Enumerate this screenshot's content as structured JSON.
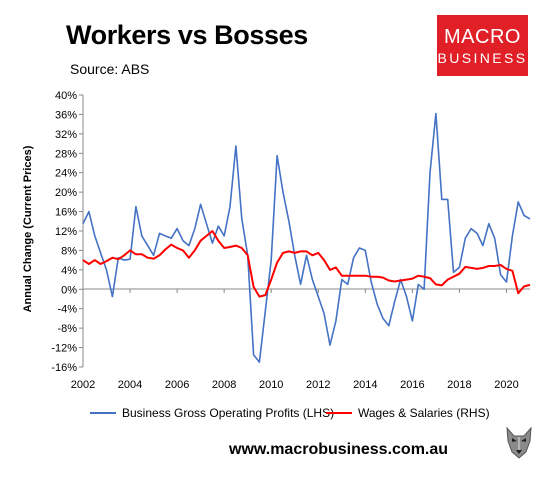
{
  "header": {
    "title": "Workers vs Bosses",
    "subtitle": "Source: ABS"
  },
  "logo": {
    "line1": "MACRO",
    "line2": "BUSINESS",
    "bg_color": "#e01f26"
  },
  "footer": {
    "website": "www.macrobusiness.com.au",
    "wolf_icon": "wolf-head-icon"
  },
  "chart_data": {
    "type": "line",
    "title": "Workers vs Bosses",
    "subtitle": "Source: ABS",
    "ylabel": "Annual Change (Current Prices)",
    "xlabel": "",
    "ylim": [
      -16,
      40
    ],
    "y_ticks": [
      -16,
      -12,
      -8,
      -4,
      0,
      4,
      8,
      12,
      16,
      20,
      24,
      28,
      32,
      36,
      40
    ],
    "y_tick_labels": [
      "-16%",
      "-12%",
      "-8%",
      "-4%",
      "0%",
      "4%",
      "8%",
      "12%",
      "16%",
      "20%",
      "24%",
      "28%",
      "32%",
      "36%",
      "40%"
    ],
    "xlim": [
      2002,
      2021
    ],
    "x_ticks": [
      2002,
      2004,
      2006,
      2008,
      2010,
      2012,
      2014,
      2016,
      2018,
      2020
    ],
    "x_tick_labels": [
      "2002",
      "2004",
      "2006",
      "2008",
      "2010",
      "2012",
      "2014",
      "2016",
      "2018",
      "2020"
    ],
    "grid": false,
    "legend_position": "bottom",
    "series": [
      {
        "name": "Business Gross Operating Profits (LHS)",
        "color": "#4472c4",
        "x": [
          2002.0,
          2002.25,
          2002.5,
          2002.75,
          2003.0,
          2003.25,
          2003.5,
          2003.75,
          2004.0,
          2004.25,
          2004.5,
          2004.75,
          2005.0,
          2005.25,
          2005.5,
          2005.75,
          2006.0,
          2006.25,
          2006.5,
          2006.75,
          2007.0,
          2007.25,
          2007.5,
          2007.75,
          2008.0,
          2008.25,
          2008.5,
          2008.75,
          2009.0,
          2009.25,
          2009.5,
          2009.75,
          2010.0,
          2010.25,
          2010.5,
          2010.75,
          2011.0,
          2011.25,
          2011.5,
          2011.75,
          2012.0,
          2012.25,
          2012.5,
          2012.75,
          2013.0,
          2013.25,
          2013.5,
          2013.75,
          2014.0,
          2014.25,
          2014.5,
          2014.75,
          2015.0,
          2015.25,
          2015.5,
          2015.75,
          2016.0,
          2016.25,
          2016.5,
          2016.75,
          2017.0,
          2017.25,
          2017.5,
          2017.75,
          2018.0,
          2018.25,
          2018.5,
          2018.75,
          2019.0,
          2019.25,
          2019.5,
          2019.75,
          2020.0,
          2020.25,
          2020.5,
          2020.75,
          2021.0
        ],
        "values": [
          13.5,
          16,
          11,
          7.5,
          4,
          -1.5,
          6.5,
          6,
          6.2,
          17,
          11,
          9,
          7,
          11.5,
          11,
          10.5,
          12.5,
          10,
          9,
          12.5,
          17.5,
          13.5,
          9.5,
          13,
          11,
          17,
          29.5,
          14.5,
          7,
          -13.5,
          -15,
          -4.5,
          6,
          27.5,
          20,
          14,
          7,
          1,
          7,
          2,
          -1.5,
          -5,
          -11.5,
          -6.5,
          2,
          1,
          6.5,
          8.5,
          8,
          1.5,
          -3,
          -6,
          -7.5,
          -2.5,
          2,
          -1.5,
          -6.5,
          1,
          0,
          24,
          36.2,
          18.5,
          18.5,
          3.5,
          4.5,
          10.5,
          12.5,
          11.5,
          9,
          13.5,
          10.5,
          3,
          1.5,
          11,
          18,
          15.2,
          14.5
        ]
      },
      {
        "name": "Wages & Salaries (RHS)",
        "color": "#ff0000",
        "x": [
          2002.0,
          2002.25,
          2002.5,
          2002.75,
          2003.0,
          2003.25,
          2003.5,
          2003.75,
          2004.0,
          2004.25,
          2004.5,
          2004.75,
          2005.0,
          2005.25,
          2005.5,
          2005.75,
          2006.0,
          2006.25,
          2006.5,
          2006.75,
          2007.0,
          2007.25,
          2007.5,
          2007.75,
          2008.0,
          2008.25,
          2008.5,
          2008.75,
          2009.0,
          2009.25,
          2009.5,
          2009.75,
          2010.0,
          2010.25,
          2010.5,
          2010.75,
          2011.0,
          2011.25,
          2011.5,
          2011.75,
          2012.0,
          2012.25,
          2012.5,
          2012.75,
          2013.0,
          2013.25,
          2013.5,
          2013.75,
          2014.0,
          2014.25,
          2014.5,
          2014.75,
          2015.0,
          2015.25,
          2015.5,
          2015.75,
          2016.0,
          2016.25,
          2016.5,
          2016.75,
          2017.0,
          2017.25,
          2017.5,
          2017.75,
          2018.0,
          2018.25,
          2018.5,
          2018.75,
          2019.0,
          2019.25,
          2019.5,
          2019.75,
          2020.0,
          2020.25,
          2020.5,
          2020.75,
          2021.0
        ],
        "values": [
          6,
          5.2,
          6,
          5.2,
          5.8,
          6.5,
          6.2,
          7,
          8,
          7.2,
          7.2,
          6.5,
          6.3,
          7,
          8.2,
          9.2,
          8.5,
          8,
          6.5,
          8,
          10,
          11,
          12,
          10,
          8.5,
          8.7,
          9,
          8.5,
          7,
          0.5,
          -1.5,
          -1.2,
          2,
          5.5,
          7.5,
          7.8,
          7.5,
          7.8,
          7.8,
          7,
          7.5,
          6,
          4,
          4.5,
          2.8,
          2.8,
          2.8,
          2.8,
          2.8,
          2.6,
          2.6,
          2.4,
          1.8,
          1.6,
          1.8,
          2,
          2.2,
          2.8,
          2.6,
          2.3,
          1,
          0.8,
          2,
          2.6,
          3.2,
          4.6,
          4.4,
          4.2,
          4.4,
          4.8,
          4.8,
          5,
          4.2,
          3.8,
          -0.8,
          0.6,
          0.9
        ]
      }
    ]
  }
}
